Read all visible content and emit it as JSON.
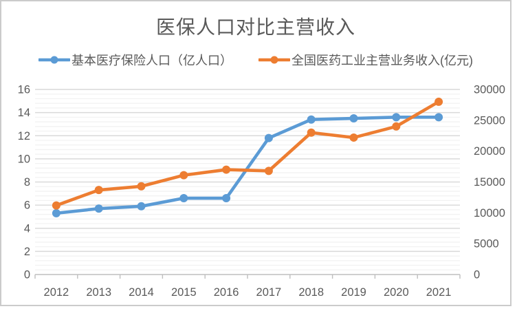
{
  "chart_data": {
    "type": "line",
    "title": "医保人口对比主营收入",
    "categories": [
      "2012",
      "2013",
      "2014",
      "2015",
      "2016",
      "2017",
      "2018",
      "2019",
      "2020",
      "2021"
    ],
    "series": [
      {
        "name": "基本医疗保险人口（亿人口）",
        "axis": "left",
        "color": "#5B9BD5",
        "marker": "circle",
        "values": [
          5.3,
          5.7,
          5.9,
          6.6,
          6.6,
          11.8,
          13.4,
          13.5,
          13.6,
          13.6
        ]
      },
      {
        "name": "全国医药工业主营业务收入(亿元)",
        "axis": "right",
        "color": "#ED7D31",
        "marker": "circle",
        "values": [
          11200,
          13700,
          14300,
          16100,
          17000,
          16800,
          23000,
          22200,
          24000,
          28000
        ]
      }
    ],
    "left_axis": {
      "min": 0,
      "max": 16,
      "major_step": 2,
      "minor_step": 0.4,
      "ticks": [
        16,
        14,
        12,
        10,
        8,
        6,
        4,
        2,
        0
      ]
    },
    "right_axis": {
      "min": 0,
      "max": 30000,
      "major_step": 5000,
      "ticks": [
        30000,
        25000,
        20000,
        15000,
        10000,
        5000,
        0
      ]
    },
    "grid": {
      "major": "on",
      "minor": "on"
    },
    "legend_position": "top"
  },
  "styles": {
    "text_color": "#595959",
    "major_grid_color": "#d9d9d9",
    "minor_grid_color": "#f2f2f2",
    "axis_line_color": "#bfbfbf",
    "frame_border_color": "#cbcbcb",
    "background": "#ffffff"
  }
}
